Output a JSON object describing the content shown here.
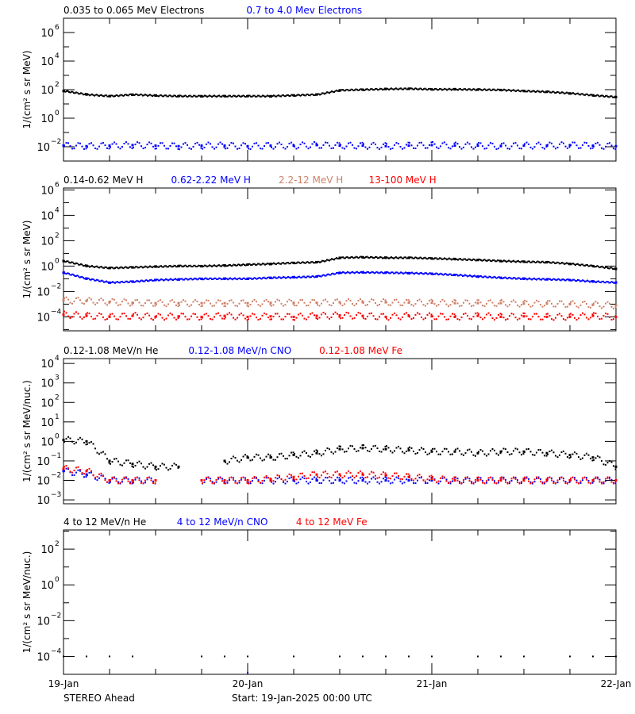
{
  "footer": {
    "spacecraft": "STEREO Ahead",
    "start": "Start: 19-Jan-2025 00:00 UTC"
  },
  "x_axis": {
    "type": "time",
    "range": [
      "2025-01-19T00:00",
      "2025-01-22T00:00"
    ],
    "tick_labels": [
      "19-Jan",
      "20-Jan",
      "21-Jan",
      "22-Jan"
    ],
    "minor_tick_hours": 6
  },
  "chart_data": [
    {
      "type": "scatter",
      "ylabel": "1/(cm² s sr MeV)",
      "yscale": "log",
      "ylim_exp": [
        -3,
        7
      ],
      "y_tick_exps": [
        -2,
        0,
        2,
        4,
        6
      ],
      "x": [
        "2025-01-19T00:00",
        "2025-01-19T03:00",
        "2025-01-19T06:00",
        "2025-01-19T09:00",
        "2025-01-19T12:00",
        "2025-01-19T15:00",
        "2025-01-19T18:00",
        "2025-01-19T21:00",
        "2025-01-20T00:00",
        "2025-01-20T03:00",
        "2025-01-20T06:00",
        "2025-01-20T09:00",
        "2025-01-20T12:00",
        "2025-01-20T15:00",
        "2025-01-20T18:00",
        "2025-01-20T21:00",
        "2025-01-21T00:00",
        "2025-01-21T03:00",
        "2025-01-21T06:00",
        "2025-01-21T09:00",
        "2025-01-21T12:00",
        "2025-01-21T15:00",
        "2025-01-21T18:00",
        "2025-01-21T21:00",
        "2025-01-22T00:00"
      ],
      "series": [
        {
          "name": "0.035 to 0.065 MeV Electrons",
          "color": "#000000",
          "style": "line",
          "values": [
            80,
            45,
            35,
            45,
            38,
            35,
            35,
            35,
            35,
            35,
            40,
            45,
            90,
            100,
            110,
            115,
            105,
            105,
            100,
            95,
            80,
            70,
            55,
            40,
            30
          ]
        },
        {
          "name": "0.7 to 4.0 Mev Electrons",
          "color": "#0000ff",
          "style": "dots",
          "values": [
            0.012,
            0.011,
            0.012,
            0.013,
            0.012,
            0.011,
            0.012,
            0.012,
            0.011,
            0.012,
            0.012,
            0.013,
            0.012,
            0.012,
            0.011,
            0.012,
            0.013,
            0.012,
            0.012,
            0.011,
            0.012,
            0.012,
            0.013,
            0.012,
            0.011
          ]
        }
      ]
    },
    {
      "type": "scatter",
      "ylabel": "1/(cm² s sr MeV)",
      "yscale": "log",
      "ylim_exp": [
        -5.1,
        6.15
      ],
      "y_tick_exps": [
        -4,
        -2,
        0,
        2,
        4,
        6
      ],
      "x": [
        "2025-01-19T00:00",
        "2025-01-19T03:00",
        "2025-01-19T06:00",
        "2025-01-19T09:00",
        "2025-01-19T12:00",
        "2025-01-19T15:00",
        "2025-01-19T18:00",
        "2025-01-19T21:00",
        "2025-01-20T00:00",
        "2025-01-20T03:00",
        "2025-01-20T06:00",
        "2025-01-20T09:00",
        "2025-01-20T12:00",
        "2025-01-20T15:00",
        "2025-01-20T18:00",
        "2025-01-20T21:00",
        "2025-01-21T00:00",
        "2025-01-21T03:00",
        "2025-01-21T06:00",
        "2025-01-21T09:00",
        "2025-01-21T12:00",
        "2025-01-21T15:00",
        "2025-01-21T18:00",
        "2025-01-21T21:00",
        "2025-01-22T00:00"
      ],
      "series": [
        {
          "name": "0.14-0.62 MeV H",
          "color": "#000000",
          "style": "line",
          "values": [
            2.5,
            1.0,
            0.7,
            0.8,
            0.9,
            1.0,
            1.0,
            1.1,
            1.3,
            1.5,
            1.8,
            2,
            4.5,
            5,
            4.5,
            4.5,
            4,
            3.5,
            3,
            2.5,
            2.2,
            2,
            1.5,
            1,
            0.6
          ]
        },
        {
          "name": "0.62-2.22 MeV H",
          "color": "#0000ff",
          "style": "line",
          "values": [
            0.3,
            0.1,
            0.05,
            0.06,
            0.08,
            0.09,
            0.1,
            0.1,
            0.1,
            0.12,
            0.13,
            0.15,
            0.3,
            0.32,
            0.3,
            0.28,
            0.25,
            0.2,
            0.15,
            0.12,
            0.1,
            0.09,
            0.08,
            0.06,
            0.05
          ]
        },
        {
          "name": "2.2-12 MeV H",
          "color": "#d08068",
          "style": "dots",
          "values": [
            0.002,
            0.0018,
            0.0015,
            0.0013,
            0.0012,
            0.0012,
            0.0012,
            0.0012,
            0.0012,
            0.0013,
            0.0013,
            0.0013,
            0.0014,
            0.0014,
            0.0014,
            0.0013,
            0.0013,
            0.0012,
            0.0012,
            0.0012,
            0.0011,
            0.0011,
            0.001,
            0.0009,
            0.0008
          ]
        },
        {
          "name": "13-100 MeV H",
          "color": "#ff0000",
          "style": "dots",
          "values": [
            0.00015,
            0.00012,
            0.0001,
            0.00012,
            0.0001,
            0.00011,
            0.0001,
            0.00012,
            0.0001,
            0.00011,
            0.0001,
            0.00012,
            0.00013,
            0.00012,
            0.0001,
            0.00012,
            0.00011,
            0.0001,
            0.00012,
            0.0001,
            0.00011,
            0.0001,
            0.0001,
            0.00012,
            0.0001
          ]
        }
      ]
    },
    {
      "type": "scatter",
      "ylabel": "1/(cm² s sr MeV/nuc.)",
      "yscale": "log",
      "ylim_exp": [
        -3.2,
        4.25
      ],
      "y_tick_exps": [
        -3,
        -2,
        -1,
        0,
        1,
        2,
        3,
        4
      ],
      "x": [
        "2025-01-19T00:00",
        "2025-01-19T03:00",
        "2025-01-19T06:00",
        "2025-01-19T09:00",
        "2025-01-19T12:00",
        "2025-01-19T15:00",
        "2025-01-19T18:00",
        "2025-01-19T21:00",
        "2025-01-20T00:00",
        "2025-01-20T03:00",
        "2025-01-20T06:00",
        "2025-01-20T09:00",
        "2025-01-20T12:00",
        "2025-01-20T15:00",
        "2025-01-20T18:00",
        "2025-01-20T21:00",
        "2025-01-21T00:00",
        "2025-01-21T03:00",
        "2025-01-21T06:00",
        "2025-01-21T09:00",
        "2025-01-21T12:00",
        "2025-01-21T15:00",
        "2025-01-21T18:00",
        "2025-01-21T21:00",
        "2025-01-22T00:00"
      ],
      "series": [
        {
          "name": "0.12-1.08 MeV/n He",
          "color": "#000000",
          "style": "dots",
          "values": [
            1.2,
            1.0,
            0.1,
            0.07,
            0.05,
            0.05,
            null,
            0.1,
            0.15,
            0.15,
            0.2,
            0.25,
            0.4,
            0.45,
            0.4,
            0.35,
            0.3,
            0.3,
            0.25,
            0.3,
            0.3,
            0.25,
            0.2,
            0.15,
            0.05
          ]
        },
        {
          "name": "0.12-1.08 MeV/n CNO",
          "color": "#0000ff",
          "style": "dots",
          "values": [
            0.03,
            0.02,
            0.01,
            0.01,
            0.01,
            null,
            0.01,
            0.01,
            0.01,
            0.01,
            0.01,
            0.01,
            0.01,
            0.01,
            0.01,
            0.01,
            0.01,
            0.01,
            0.01,
            0.01,
            0.01,
            0.01,
            0.01,
            0.01,
            0.01
          ]
        },
        {
          "name": "0.12-1.08 MeV Fe",
          "color": "#ff0000",
          "style": "dots",
          "values": [
            0.04,
            0.03,
            0.01,
            0.01,
            0.01,
            null,
            0.01,
            0.01,
            0.01,
            0.012,
            0.015,
            0.02,
            0.02,
            0.02,
            0.018,
            0.015,
            0.012,
            0.01,
            0.01,
            0.01,
            0.01,
            0.01,
            0.01,
            0.01,
            0.01
          ]
        }
      ]
    },
    {
      "type": "scatter",
      "ylabel": "1/(cm² s sr MeV/nuc.)",
      "yscale": "log",
      "ylim_exp": [
        -5,
        3.07
      ],
      "y_tick_exps": [
        -4,
        -2,
        0,
        2
      ],
      "x": [
        "2025-01-19T00:00",
        "2025-01-19T03:00",
        "2025-01-19T06:00",
        "2025-01-19T09:00",
        "2025-01-19T12:00",
        "2025-01-19T15:00",
        "2025-01-19T18:00",
        "2025-01-19T21:00",
        "2025-01-20T00:00",
        "2025-01-20T03:00",
        "2025-01-20T06:00",
        "2025-01-20T09:00",
        "2025-01-20T12:00",
        "2025-01-20T15:00",
        "2025-01-20T18:00",
        "2025-01-20T21:00",
        "2025-01-21T00:00",
        "2025-01-21T03:00",
        "2025-01-21T06:00",
        "2025-01-21T09:00",
        "2025-01-21T12:00",
        "2025-01-21T15:00",
        "2025-01-21T18:00",
        "2025-01-21T21:00",
        "2025-01-22T00:00"
      ],
      "series": [
        {
          "name": "4 to 12 MeV/n He",
          "color": "#000000",
          "style": "sparse",
          "values": [
            0.0001,
            0.0001,
            0.0001,
            0.0001,
            null,
            null,
            0.0001,
            0.0001,
            0.0001,
            null,
            0.0001,
            null,
            0.0001,
            0.0001,
            0.0001,
            0.0001,
            0.0001,
            null,
            0.0001,
            0.0001,
            0.0001,
            null,
            0.0001,
            0.0001,
            0.0001
          ]
        },
        {
          "name": "4 to 12 MeV/n CNO",
          "color": "#0000ff",
          "style": "sparse",
          "values": [
            null,
            null,
            null,
            null,
            null,
            null,
            null,
            null,
            1.25e-05,
            null,
            null,
            null,
            null,
            null,
            null,
            null,
            null,
            null,
            null,
            null,
            null,
            null,
            null,
            null,
            null
          ]
        },
        {
          "name": "4 to 12 MeV Fe",
          "color": "#ff0000",
          "style": "sparse",
          "values": [
            null,
            null,
            null,
            null,
            null,
            null,
            null,
            null,
            null,
            null,
            null,
            null,
            null,
            null,
            null,
            null,
            null,
            null,
            null,
            null,
            null,
            null,
            null,
            null,
            null
          ]
        }
      ]
    }
  ]
}
